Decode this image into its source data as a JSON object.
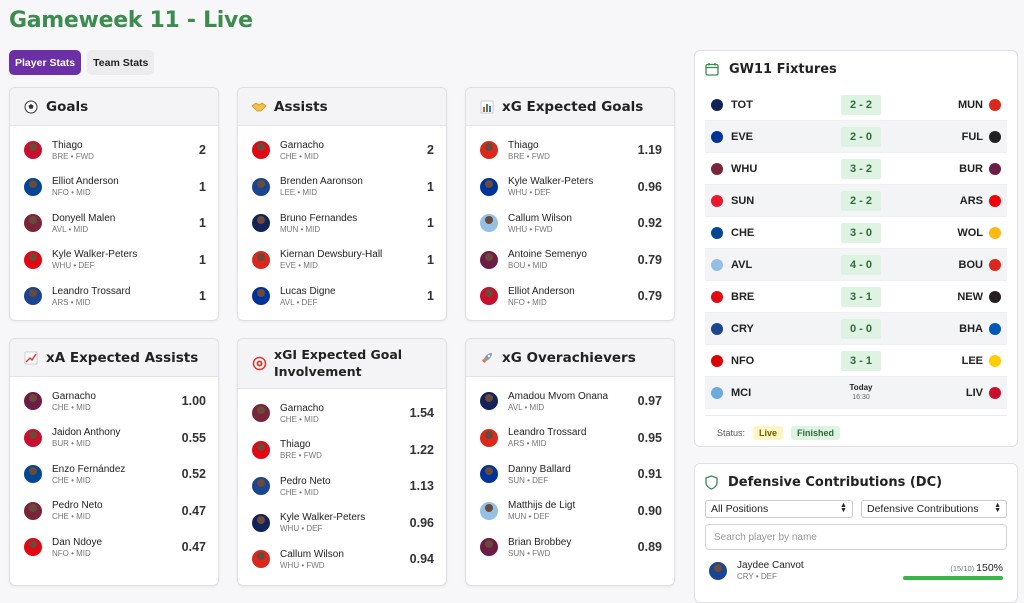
{
  "title": "Gameweek 11 - Live",
  "tabs": [
    "Player Stats",
    "Team Stats"
  ],
  "cards": [
    {
      "title": "Goals",
      "icon": "soccer-ball-icon",
      "rows": [
        {
          "name": "Thiago",
          "meta": "BRE • FWD",
          "value": "2"
        },
        {
          "name": "Elliot Anderson",
          "meta": "NFO • MID",
          "value": "1"
        },
        {
          "name": "Donyell Malen",
          "meta": "AVL • MID",
          "value": "1"
        },
        {
          "name": "Kyle Walker-Peters",
          "meta": "WHU • DEF",
          "value": "1"
        },
        {
          "name": "Leandro Trossard",
          "meta": "ARS • MID",
          "value": "1"
        }
      ]
    },
    {
      "title": "Assists",
      "icon": "handshake-icon",
      "rows": [
        {
          "name": "Garnacho",
          "meta": "CHE • MID",
          "value": "2"
        },
        {
          "name": "Brenden Aaronson",
          "meta": "LEE • MID",
          "value": "1"
        },
        {
          "name": "Bruno Fernandes",
          "meta": "MUN • MID",
          "value": "1"
        },
        {
          "name": "Kiernan Dewsbury-Hall",
          "meta": "EVE • MID",
          "value": "1"
        },
        {
          "name": "Lucas Digne",
          "meta": "AVL • DEF",
          "value": "1"
        }
      ]
    },
    {
      "title": "xG Expected Goals",
      "icon": "bar-chart-icon",
      "rows": [
        {
          "name": "Thiago",
          "meta": "BRE • FWD",
          "value": "1.19"
        },
        {
          "name": "Kyle Walker-Peters",
          "meta": "WHU • DEF",
          "value": "0.96"
        },
        {
          "name": "Callum Wilson",
          "meta": "WHU • FWD",
          "value": "0.92"
        },
        {
          "name": "Antoine Semenyo",
          "meta": "BOU • MID",
          "value": "0.79"
        },
        {
          "name": "Elliot Anderson",
          "meta": "NFO • MID",
          "value": "0.79"
        }
      ]
    },
    {
      "title": "xA Expected Assists",
      "icon": "trend-chart-icon",
      "rows": [
        {
          "name": "Garnacho",
          "meta": "CHE • MID",
          "value": "1.00"
        },
        {
          "name": "Jaidon Anthony",
          "meta": "BUR • MID",
          "value": "0.55"
        },
        {
          "name": "Enzo Fernández",
          "meta": "CHE • MID",
          "value": "0.52"
        },
        {
          "name": "Pedro Neto",
          "meta": "CHE • MID",
          "value": "0.47"
        },
        {
          "name": "Dan Ndoye",
          "meta": "NFO • MID",
          "value": "0.47"
        }
      ]
    },
    {
      "title": "xGI Expected Goal Involvement",
      "icon": "target-icon",
      "rows": [
        {
          "name": "Garnacho",
          "meta": "CHE • MID",
          "value": "1.54"
        },
        {
          "name": "Thiago",
          "meta": "BRE • FWD",
          "value": "1.22"
        },
        {
          "name": "Pedro Neto",
          "meta": "CHE • MID",
          "value": "1.13"
        },
        {
          "name": "Kyle Walker-Peters",
          "meta": "WHU • DEF",
          "value": "0.96"
        },
        {
          "name": "Callum Wilson",
          "meta": "WHU • FWD",
          "value": "0.94"
        }
      ]
    },
    {
      "title": "xG Overachievers",
      "icon": "rocket-icon",
      "rows": [
        {
          "name": "Amadou Mvom Onana",
          "meta": "AVL • MID",
          "value": "0.97"
        },
        {
          "name": "Leandro Trossard",
          "meta": "ARS • MID",
          "value": "0.95"
        },
        {
          "name": "Danny Ballard",
          "meta": "SUN • DEF",
          "value": "0.91"
        },
        {
          "name": "Matthijs de Ligt",
          "meta": "MUN • DEF",
          "value": "0.90"
        },
        {
          "name": "Brian Brobbey",
          "meta": "SUN • FWD",
          "value": "0.89"
        }
      ]
    }
  ],
  "fixtures": {
    "title": "GW11 Fixtures",
    "rows": [
      {
        "home": "TOT",
        "score": "2 - 2",
        "away": "MUN",
        "hc": "#132257",
        "ac": "#da291c"
      },
      {
        "home": "EVE",
        "score": "2 - 0",
        "away": "FUL",
        "hc": "#003399",
        "ac": "#222222"
      },
      {
        "home": "WHU",
        "score": "3 - 2",
        "away": "BUR",
        "hc": "#7a263a",
        "ac": "#6c1d45"
      },
      {
        "home": "SUN",
        "score": "2 - 2",
        "away": "ARS",
        "hc": "#eb172b",
        "ac": "#ef0107"
      },
      {
        "home": "CHE",
        "score": "3 - 0",
        "away": "WOL",
        "hc": "#034694",
        "ac": "#fdb913"
      },
      {
        "home": "AVL",
        "score": "4 - 0",
        "away": "BOU",
        "hc": "#95bfe5",
        "ac": "#da291c"
      },
      {
        "home": "BRE",
        "score": "3 - 1",
        "away": "NEW",
        "hc": "#e30613",
        "ac": "#241f20"
      },
      {
        "home": "CRY",
        "score": "0 - 0",
        "away": "BHA",
        "hc": "#1b458f",
        "ac": "#0057b8"
      },
      {
        "home": "NFO",
        "score": "3 - 1",
        "away": "LEE",
        "hc": "#dd0000",
        "ac": "#ffcd00"
      },
      {
        "home": "MCI",
        "today": "Today",
        "time": "16:30",
        "away": "LIV",
        "hc": "#6cabdd",
        "ac": "#c8102e"
      }
    ],
    "status_label": "Status:",
    "live": "Live",
    "finished": "Finished"
  },
  "dc": {
    "title": "Defensive Contributions (DC)",
    "position_select": "All Positions",
    "stat_select": "Defensive Contributions",
    "search_placeholder": "Search player by name",
    "player": {
      "name": "Jaydee Canvot",
      "meta": "CRY • DEF",
      "ratio": "(15/10)",
      "pct": "150%",
      "fill": 1.0
    }
  }
}
